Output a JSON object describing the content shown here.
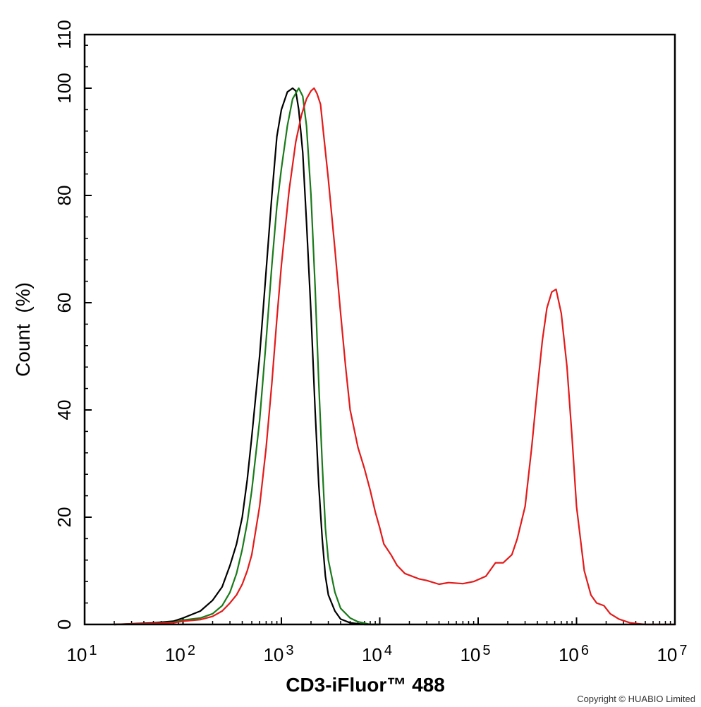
{
  "chart_data": {
    "type": "line",
    "title": "",
    "xlabel": "CD3-iFluor™ 488",
    "ylabel": "Count  (%)",
    "x_scale": "log",
    "xlim": [
      10,
      10000000
    ],
    "ylim": [
      0,
      110
    ],
    "x_tick_labels": [
      {
        "base": "10",
        "exp": "1"
      },
      {
        "base": "10",
        "exp": "2"
      },
      {
        "base": "10",
        "exp": "3"
      },
      {
        "base": "10",
        "exp": "4"
      },
      {
        "base": "10",
        "exp": "5"
      },
      {
        "base": "10",
        "exp": "6"
      },
      {
        "base": "10",
        "exp": "7"
      }
    ],
    "y_ticks": [
      "0",
      "20",
      "40",
      "60",
      "80",
      "100",
      "110"
    ],
    "grid": false,
    "legend": "none",
    "series": [
      {
        "color": "#000000",
        "points": [
          [
            20,
            0
          ],
          [
            50,
            0.3
          ],
          [
            80,
            0.6
          ],
          [
            100,
            1.2
          ],
          [
            150,
            2.5
          ],
          [
            200,
            4.5
          ],
          [
            250,
            7
          ],
          [
            300,
            11
          ],
          [
            350,
            15
          ],
          [
            400,
            20
          ],
          [
            450,
            27
          ],
          [
            500,
            35
          ],
          [
            600,
            50
          ],
          [
            700,
            66
          ],
          [
            800,
            80
          ],
          [
            900,
            91
          ],
          [
            1000,
            96
          ],
          [
            1150,
            99.3
          ],
          [
            1300,
            100
          ],
          [
            1400,
            99.5
          ],
          [
            1500,
            96
          ],
          [
            1650,
            88
          ],
          [
            1800,
            75
          ],
          [
            2000,
            58
          ],
          [
            2200,
            40
          ],
          [
            2400,
            26
          ],
          [
            2600,
            16
          ],
          [
            2800,
            9
          ],
          [
            3000,
            5.5
          ],
          [
            3500,
            2.5
          ],
          [
            4000,
            1
          ],
          [
            5000,
            0.3
          ],
          [
            7000,
            0
          ],
          [
            10000,
            0
          ]
        ]
      },
      {
        "color": "#1a7a1a",
        "points": [
          [
            20,
            0
          ],
          [
            50,
            0.2
          ],
          [
            80,
            0.4
          ],
          [
            100,
            0.8
          ],
          [
            150,
            1.2
          ],
          [
            200,
            2
          ],
          [
            250,
            3.5
          ],
          [
            300,
            6
          ],
          [
            350,
            9.5
          ],
          [
            400,
            14
          ],
          [
            450,
            19
          ],
          [
            500,
            25
          ],
          [
            600,
            38
          ],
          [
            700,
            53
          ],
          [
            800,
            67
          ],
          [
            900,
            78
          ],
          [
            1000,
            85
          ],
          [
            1150,
            93
          ],
          [
            1300,
            98
          ],
          [
            1500,
            100
          ],
          [
            1650,
            98.5
          ],
          [
            1800,
            93
          ],
          [
            2000,
            80
          ],
          [
            2200,
            63
          ],
          [
            2400,
            45
          ],
          [
            2600,
            30
          ],
          [
            2800,
            18
          ],
          [
            3000,
            12
          ],
          [
            3500,
            6
          ],
          [
            4000,
            3
          ],
          [
            5000,
            1.2
          ],
          [
            6000,
            0.5
          ],
          [
            8000,
            0
          ],
          [
            10000,
            0
          ]
        ]
      },
      {
        "color": "#e31a1a",
        "points": [
          [
            20,
            0
          ],
          [
            50,
            0.2
          ],
          [
            80,
            0.3
          ],
          [
            100,
            0.6
          ],
          [
            150,
            0.9
          ],
          [
            200,
            1.5
          ],
          [
            250,
            2.5
          ],
          [
            300,
            4
          ],
          [
            350,
            5.5
          ],
          [
            400,
            7.5
          ],
          [
            450,
            10
          ],
          [
            500,
            13
          ],
          [
            600,
            22
          ],
          [
            700,
            33
          ],
          [
            800,
            45
          ],
          [
            900,
            57
          ],
          [
            1000,
            67
          ],
          [
            1200,
            81
          ],
          [
            1400,
            90
          ],
          [
            1600,
            95
          ],
          [
            1800,
            98
          ],
          [
            2000,
            99.5
          ],
          [
            2150,
            100
          ],
          [
            2300,
            99
          ],
          [
            2500,
            97
          ],
          [
            2700,
            91
          ],
          [
            3000,
            83
          ],
          [
            3500,
            70
          ],
          [
            4000,
            58
          ],
          [
            4500,
            48
          ],
          [
            5000,
            40
          ],
          [
            6000,
            33
          ],
          [
            7000,
            29
          ],
          [
            8000,
            25
          ],
          [
            9000,
            21
          ],
          [
            10000,
            18
          ],
          [
            11000,
            15
          ],
          [
            13000,
            13
          ],
          [
            15000,
            11
          ],
          [
            18000,
            9.5
          ],
          [
            25000,
            8.5
          ],
          [
            30000,
            8.2
          ],
          [
            40000,
            7.5
          ],
          [
            50000,
            7.8
          ],
          [
            70000,
            7.6
          ],
          [
            90000,
            8
          ],
          [
            120000,
            9
          ],
          [
            150000,
            11.5
          ],
          [
            180000,
            11.5
          ],
          [
            220000,
            13
          ],
          [
            250000,
            16
          ],
          [
            300000,
            22
          ],
          [
            350000,
            33
          ],
          [
            400000,
            44
          ],
          [
            450000,
            53
          ],
          [
            500000,
            59
          ],
          [
            560000,
            62
          ],
          [
            620000,
            62.5
          ],
          [
            700000,
            58
          ],
          [
            800000,
            48
          ],
          [
            900000,
            35
          ],
          [
            1000000,
            22
          ],
          [
            1200000,
            10
          ],
          [
            1400000,
            5.5
          ],
          [
            1600000,
            4
          ],
          [
            1900000,
            3.5
          ],
          [
            2200000,
            2
          ],
          [
            2700000,
            1
          ],
          [
            3500000,
            0.3
          ],
          [
            5000000,
            0
          ],
          [
            10000000,
            0
          ]
        ]
      }
    ]
  },
  "footer": {
    "copyright": "Copyright © HUABIO Limited"
  }
}
